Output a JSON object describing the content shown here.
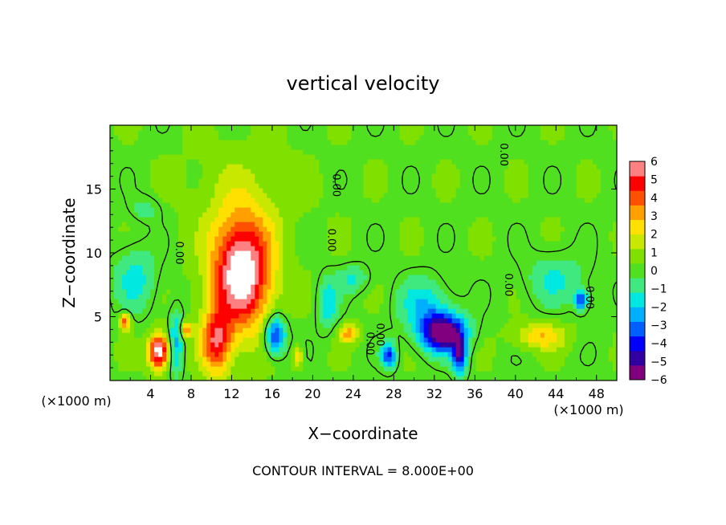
{
  "chart_data": {
    "type": "heatmap",
    "title": "vertical velocity",
    "xlabel": "X−coordinate",
    "ylabel": "Z−coordinate",
    "x_unit_left": "(×1000 m)",
    "x_unit_right": "(×1000 m)",
    "footer": "CONTOUR INTERVAL = 8.000E+00",
    "xlim": [
      0,
      50
    ],
    "ylim": [
      0,
      20
    ],
    "x_ticks": [
      "4",
      "8",
      "12",
      "16",
      "20",
      "24",
      "28",
      "32",
      "36",
      "40",
      "44",
      "48"
    ],
    "y_ticks": [
      "5",
      "10",
      "15"
    ],
    "contour_labels": [
      "0.00",
      "0.00",
      "0.00",
      "0.00",
      "0.00",
      "0.00",
      "0.00",
      "0.00"
    ],
    "colorbar": {
      "min": -6,
      "max": 6,
      "tick_labels": [
        "6",
        "5",
        "4",
        "3",
        "2",
        "1",
        "0",
        "−1",
        "−2",
        "−3",
        "−4",
        "−5",
        "−6"
      ],
      "colors": [
        "#800080",
        "#3000a0",
        "#0000ff",
        "#0060ff",
        "#00b0ff",
        "#00e8e0",
        "#40e880",
        "#50e020",
        "#80e000",
        "#c8e800",
        "#ffe000",
        "#ffa000",
        "#ff5000",
        "#ff0000",
        "#ff8080"
      ]
    },
    "features": [
      {
        "kind": "updraft",
        "x": 13,
        "z": 8.5,
        "sx": 3.0,
        "sz": 4.5,
        "w": 6.8
      },
      {
        "kind": "updraft",
        "x": 10.5,
        "z": 3.0,
        "sx": 1.5,
        "sz": 2.5,
        "w": 4.5
      },
      {
        "kind": "updraft",
        "x": 4.8,
        "z": 2.3,
        "sx": 1.0,
        "sz": 1.4,
        "w": 6.5
      },
      {
        "kind": "updraft",
        "x": 7.5,
        "z": 4.0,
        "sx": 0.5,
        "sz": 0.6,
        "w": 3.5
      },
      {
        "kind": "updraft",
        "x": 1.5,
        "z": 4.6,
        "sx": 0.5,
        "sz": 0.7,
        "w": 4.0
      },
      {
        "kind": "updraft",
        "x": 23.5,
        "z": 3.7,
        "sx": 1.0,
        "sz": 0.7,
        "w": 3.0
      },
      {
        "kind": "updraft",
        "x": 42.5,
        "z": 3.5,
        "sx": 2.5,
        "sz": 1.0,
        "w": 2.5
      },
      {
        "kind": "updraft",
        "x": 18.5,
        "z": 1.8,
        "sx": 0.5,
        "sz": 0.8,
        "w": 2.5
      },
      {
        "kind": "updraft",
        "x": 13,
        "z": 15,
        "sx": 6.0,
        "sz": 4.0,
        "w": 0.7
      },
      {
        "kind": "downdraft",
        "x": 32.8,
        "z": 3.8,
        "sx": 2.2,
        "sz": 1.5,
        "w": -6.5
      },
      {
        "kind": "downdraft",
        "x": 34.5,
        "z": 2.0,
        "sx": 0.7,
        "sz": 1.5,
        "w": -4.5
      },
      {
        "kind": "downdraft",
        "x": 16.3,
        "z": 3.6,
        "sx": 1.0,
        "sz": 1.5,
        "w": -4.5
      },
      {
        "kind": "downdraft",
        "x": 46.5,
        "z": 6.3,
        "sx": 0.6,
        "sz": 0.8,
        "w": -4.0
      },
      {
        "kind": "downdraft",
        "x": 27.5,
        "z": 2.0,
        "sx": 0.7,
        "sz": 1.0,
        "w": -4.0
      },
      {
        "kind": "downdraft",
        "x": 31,
        "z": 6.0,
        "sx": 2.5,
        "sz": 2.0,
        "w": -2.0
      },
      {
        "kind": "downdraft",
        "x": 6.5,
        "z": 3.0,
        "sx": 0.7,
        "sz": 2.5,
        "w": -2.5
      },
      {
        "kind": "downdraft",
        "x": 2.5,
        "z": 8.0,
        "sx": 2.0,
        "sz": 2.5,
        "w": -1.8
      },
      {
        "kind": "downdraft",
        "x": 44,
        "z": 8.0,
        "sx": 3.0,
        "sz": 2.0,
        "w": -1.5
      },
      {
        "kind": "downdraft",
        "x": 21.5,
        "z": 6.0,
        "sx": 1.0,
        "sz": 2.0,
        "w": -2.0
      },
      {
        "kind": "downdraft",
        "x": 24,
        "z": 8.0,
        "sx": 1.5,
        "sz": 1.0,
        "w": -1.5
      },
      {
        "kind": "downdraft",
        "x": 3.5,
        "z": 13.5,
        "sx": 1.5,
        "sz": 1.0,
        "w": -1.0
      }
    ]
  }
}
